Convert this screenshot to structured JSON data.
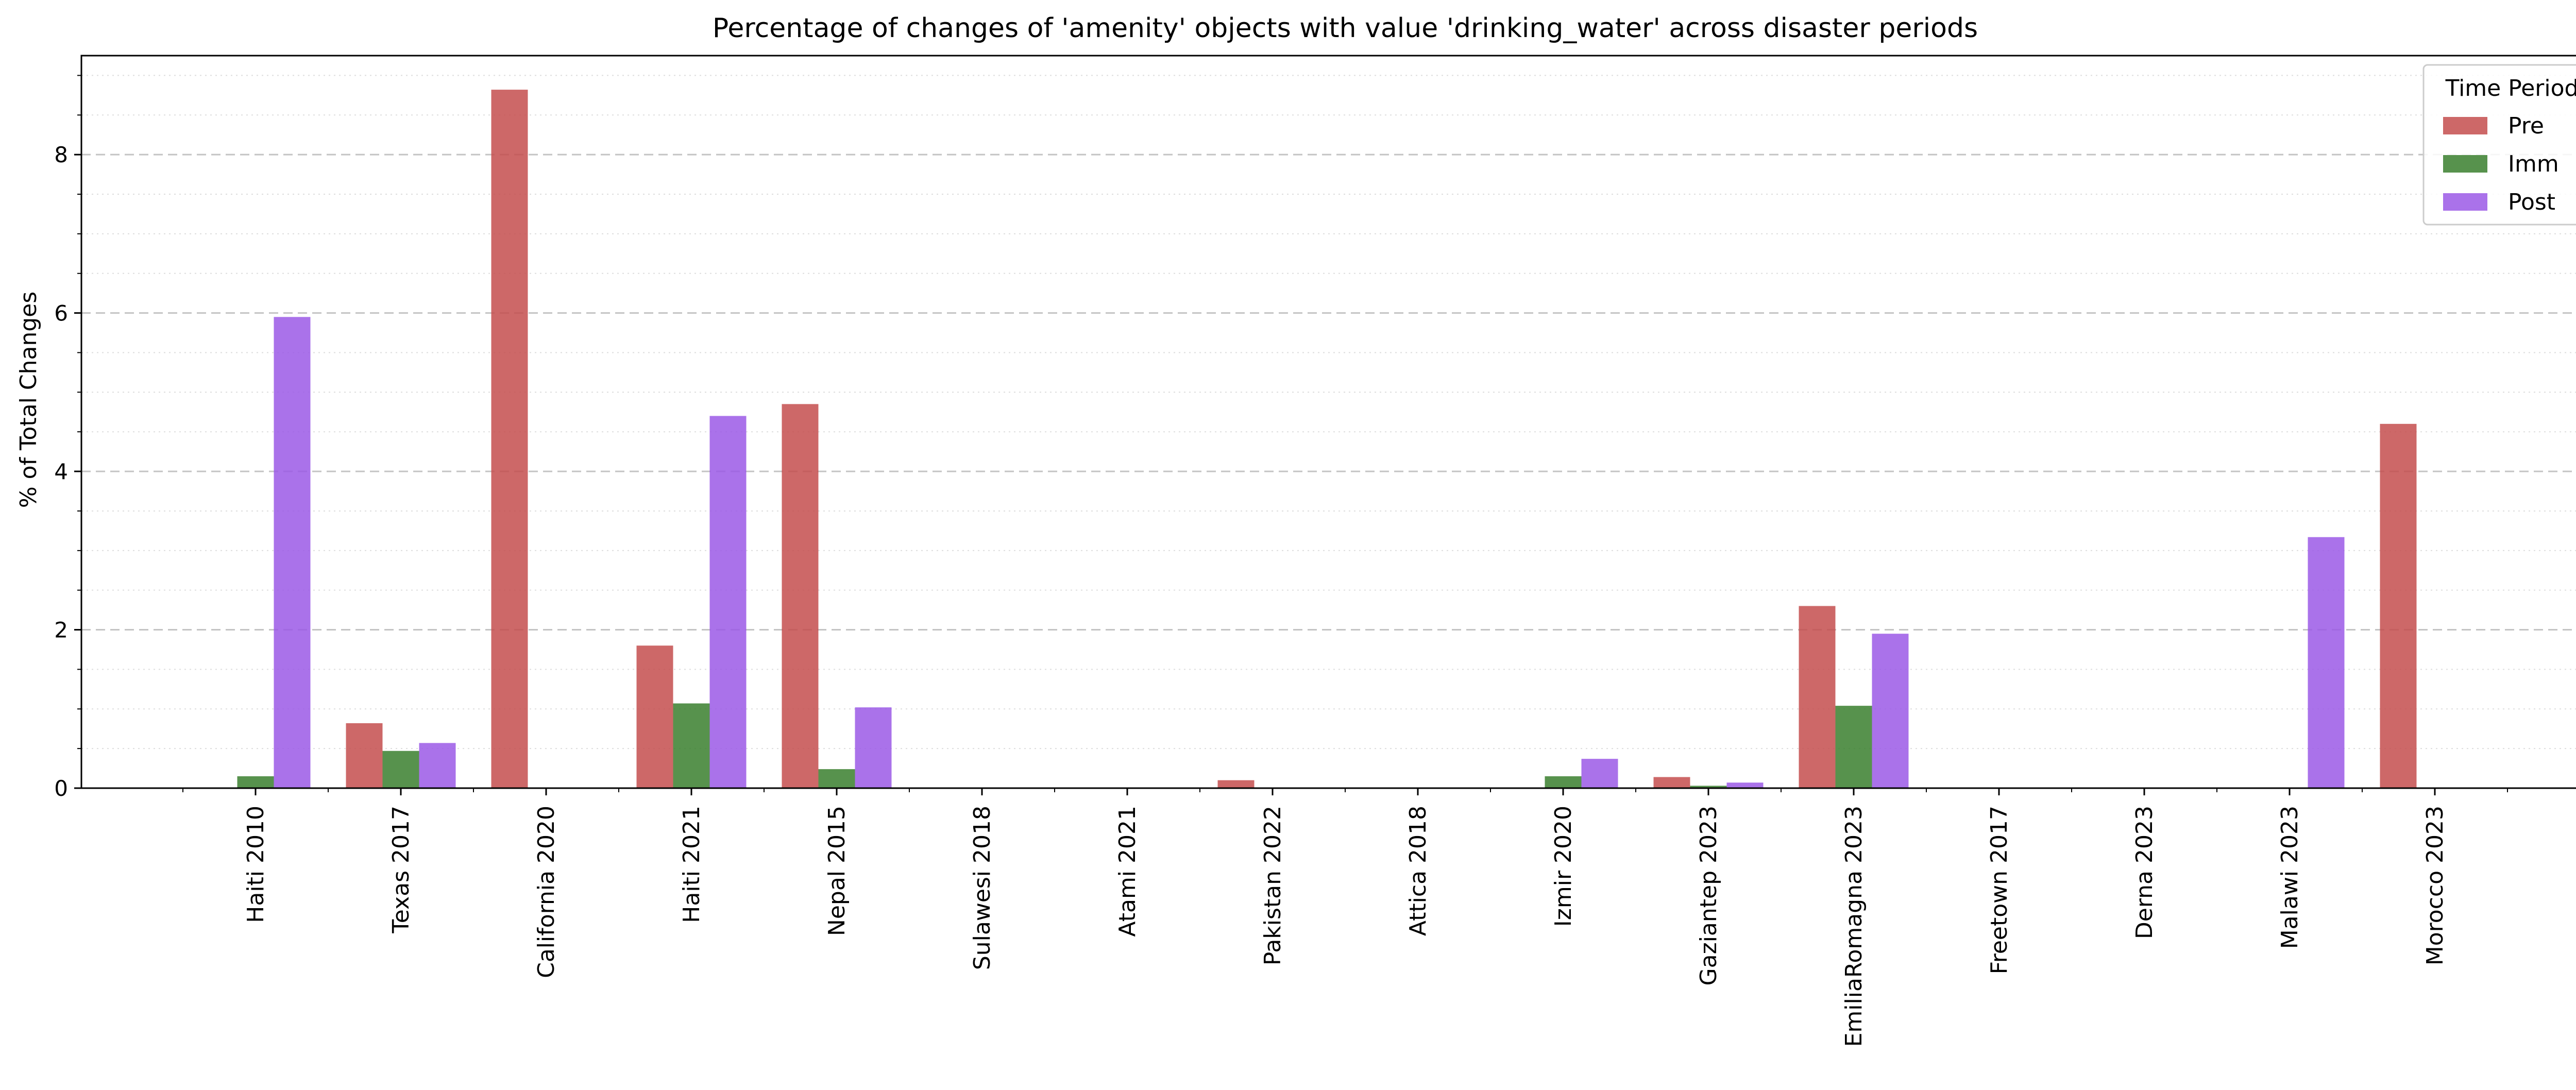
{
  "chart_data": {
    "type": "bar",
    "title": "Percentage of changes of 'amenity' objects with value 'drinking_water' across disaster periods",
    "xlabel": "",
    "ylabel": "% of Total Changes",
    "ylim": [
      0,
      9.25
    ],
    "yticks": [
      0,
      2,
      4,
      6,
      8
    ],
    "grid": "major dashed, minor dotted (y only)",
    "legend": {
      "title": "Time Period",
      "placement": "top-right"
    },
    "categories": [
      "Haiti 2010",
      "Texas 2017",
      "California 2020",
      "Haiti 2021",
      "Nepal 2015",
      "Sulawesi 2018",
      "Atami 2021",
      "Pakistan 2022",
      "Attica 2018",
      "Izmir 2020",
      "Gaziantep 2023",
      "EmiliaRomagna 2023",
      "Freetown 2017",
      "Derna 2023",
      "Malawi 2023",
      "Morocco 2023"
    ],
    "series": [
      {
        "name": "Pre",
        "color": "#c44e4e",
        "values": [
          0,
          0.82,
          8.82,
          1.8,
          4.85,
          0,
          0,
          0.1,
          0,
          0,
          0.14,
          2.3,
          0,
          0,
          0,
          4.6
        ]
      },
      {
        "name": "Imm",
        "color": "#3a7f2e",
        "values": [
          0.15,
          0.47,
          0,
          1.07,
          0.24,
          0,
          0,
          0,
          0,
          0.15,
          0.03,
          1.04,
          0,
          0,
          0,
          0
        ]
      },
      {
        "name": "Post",
        "color": "#9b59e6",
        "values": [
          5.95,
          0.57,
          0,
          4.7,
          1.02,
          0,
          0,
          0,
          0,
          0.37,
          0.07,
          1.95,
          0,
          0,
          3.17,
          0
        ]
      }
    ]
  }
}
